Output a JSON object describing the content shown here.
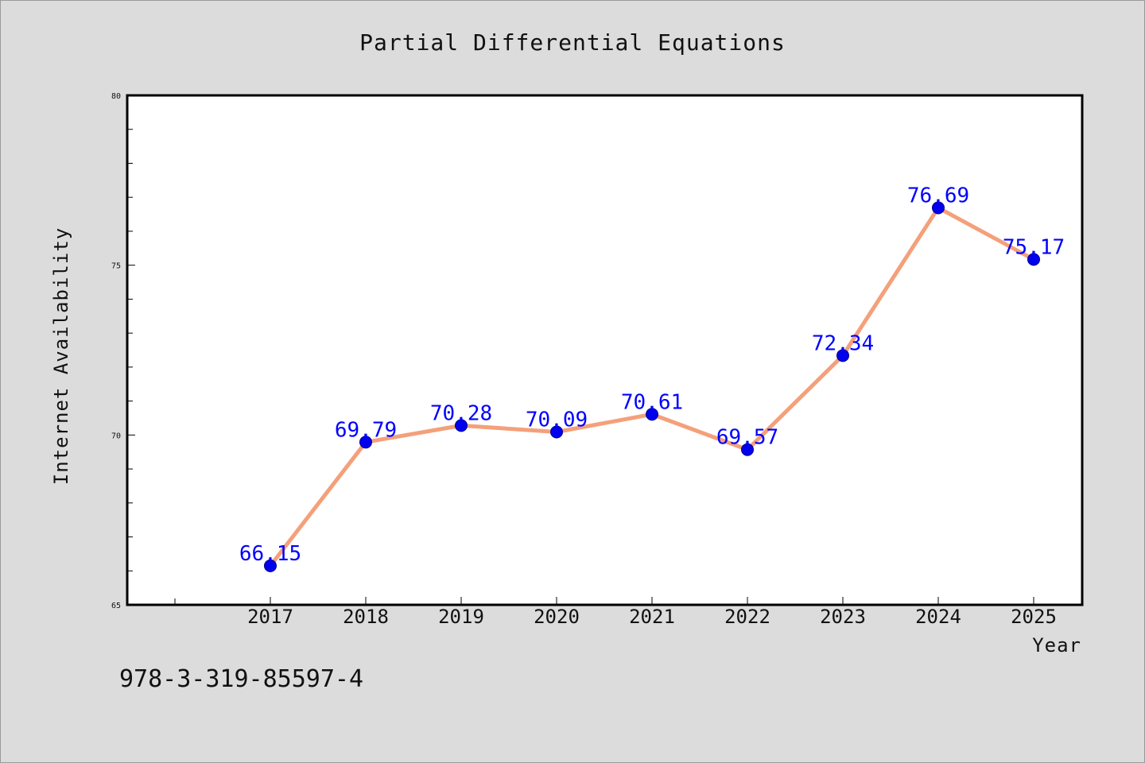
{
  "chart_data": {
    "type": "line",
    "title": "Partial Differential Equations",
    "xlabel": "Year",
    "ylabel": "Internet Availability",
    "categories": [
      "2017",
      "2018",
      "2019",
      "2020",
      "2021",
      "2022",
      "2023",
      "2024",
      "2025"
    ],
    "series": [
      {
        "values": [
          66.15,
          69.79,
          70.28,
          70.09,
          70.61,
          69.57,
          72.34,
          76.69,
          75.17
        ],
        "labels": [
          "66.15",
          "69.79",
          "70.28",
          "70.09",
          "70.61",
          "69.57",
          "72.34",
          "76.69",
          "75.17"
        ],
        "line_color": "#f4a07a",
        "marker_color": "#0000ee"
      }
    ],
    "ylim": [
      65,
      80
    ],
    "yticks": [
      "65",
      "70",
      "75",
      "80"
    ],
    "grid": false,
    "legend": "none"
  },
  "footer": {
    "isbn": "978-3-319-85597-4"
  },
  "colors": {
    "background": "#dcdcdc",
    "plot_area": "#ffffff",
    "label": "#0000ff"
  }
}
